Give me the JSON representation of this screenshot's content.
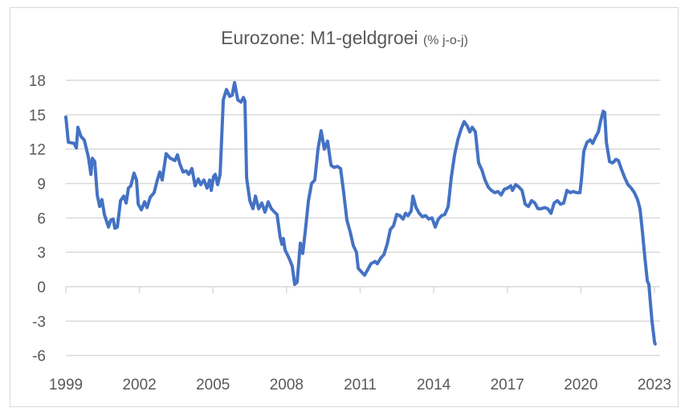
{
  "chart_data": {
    "type": "line",
    "title": "Eurozone: M1-geldgroei",
    "subtitle": "(% j-o-j)",
    "xlabel": "",
    "ylabel": "",
    "xlim": [
      1999,
      2023
    ],
    "ylim": [
      -6,
      18
    ],
    "yticks": [
      18,
      15,
      12,
      9,
      6,
      3,
      0,
      -3,
      -6
    ],
    "ytick_labels": [
      "18",
      "15",
      "12",
      "9",
      "6",
      "3",
      "0",
      "-3",
      "-6"
    ],
    "xticks": [
      1999,
      2002,
      2005,
      2008,
      2011,
      2014,
      2017,
      2020,
      2023
    ],
    "xtick_labels": [
      "1999",
      "2002",
      "2005",
      "2008",
      "2011",
      "2014",
      "2017",
      "2020",
      "2023"
    ],
    "grid": true,
    "legend": "none",
    "color": "#4472c4",
    "series": [
      {
        "name": "M1-geldgroei",
        "points": [
          [
            1999.0,
            14.8
          ],
          [
            1999.1,
            12.6
          ],
          [
            1999.33,
            12.5
          ],
          [
            1999.43,
            12.1
          ],
          [
            1999.49,
            13.9
          ],
          [
            1999.62,
            13.1
          ],
          [
            1999.75,
            12.8
          ],
          [
            1999.92,
            11.3
          ],
          [
            2000.02,
            9.8
          ],
          [
            2000.08,
            11.2
          ],
          [
            2000.18,
            10.9
          ],
          [
            2000.28,
            8.0
          ],
          [
            2000.38,
            7.0
          ],
          [
            2000.47,
            7.6
          ],
          [
            2000.57,
            6.3
          ],
          [
            2000.74,
            5.2
          ],
          [
            2000.83,
            5.8
          ],
          [
            2000.93,
            5.9
          ],
          [
            2001.0,
            5.1
          ],
          [
            2001.1,
            5.2
          ],
          [
            2001.23,
            7.5
          ],
          [
            2001.36,
            7.9
          ],
          [
            2001.46,
            7.3
          ],
          [
            2001.55,
            8.6
          ],
          [
            2001.65,
            8.8
          ],
          [
            2001.78,
            9.9
          ],
          [
            2001.88,
            9.3
          ],
          [
            2001.95,
            7.2
          ],
          [
            2002.08,
            6.7
          ],
          [
            2002.21,
            7.4
          ],
          [
            2002.31,
            6.9
          ],
          [
            2002.44,
            7.8
          ],
          [
            2002.6,
            8.2
          ],
          [
            2002.73,
            9.3
          ],
          [
            2002.83,
            10.0
          ],
          [
            2002.93,
            9.3
          ],
          [
            2003.09,
            11.6
          ],
          [
            2003.26,
            11.2
          ],
          [
            2003.45,
            11.0
          ],
          [
            2003.55,
            11.5
          ],
          [
            2003.65,
            10.7
          ],
          [
            2003.78,
            10.0
          ],
          [
            2003.91,
            10.1
          ],
          [
            2004.01,
            9.8
          ],
          [
            2004.14,
            10.3
          ],
          [
            2004.27,
            8.8
          ],
          [
            2004.4,
            9.4
          ],
          [
            2004.5,
            8.9
          ],
          [
            2004.63,
            9.3
          ],
          [
            2004.76,
            8.6
          ],
          [
            2004.86,
            9.3
          ],
          [
            2004.93,
            8.4
          ],
          [
            2005.02,
            9.6
          ],
          [
            2005.09,
            9.8
          ],
          [
            2005.19,
            8.9
          ],
          [
            2005.29,
            9.8
          ],
          [
            2005.42,
            16.3
          ],
          [
            2005.55,
            17.2
          ],
          [
            2005.68,
            16.6
          ],
          [
            2005.78,
            16.7
          ],
          [
            2005.88,
            17.8
          ],
          [
            2006.01,
            16.3
          ],
          [
            2006.14,
            16.1
          ],
          [
            2006.24,
            16.5
          ],
          [
            2006.3,
            16.2
          ],
          [
            2006.37,
            9.5
          ],
          [
            2006.5,
            7.5
          ],
          [
            2006.63,
            6.8
          ],
          [
            2006.73,
            7.9
          ],
          [
            2006.86,
            6.8
          ],
          [
            2006.99,
            7.3
          ],
          [
            2007.12,
            6.5
          ],
          [
            2007.25,
            7.4
          ],
          [
            2007.38,
            6.8
          ],
          [
            2007.51,
            6.5
          ],
          [
            2007.61,
            6.3
          ],
          [
            2007.74,
            4.3
          ],
          [
            2007.81,
            3.7
          ],
          [
            2007.87,
            4.2
          ],
          [
            2007.94,
            3.2
          ],
          [
            2008.1,
            2.5
          ],
          [
            2008.23,
            1.8
          ],
          [
            2008.33,
            0.2
          ],
          [
            2008.43,
            0.4
          ],
          [
            2008.56,
            3.8
          ],
          [
            2008.66,
            2.9
          ],
          [
            2008.76,
            4.8
          ],
          [
            2008.89,
            7.5
          ],
          [
            2009.02,
            9.0
          ],
          [
            2009.15,
            9.3
          ],
          [
            2009.28,
            12.0
          ],
          [
            2009.41,
            13.6
          ],
          [
            2009.54,
            12.0
          ],
          [
            2009.67,
            12.7
          ],
          [
            2009.81,
            10.6
          ],
          [
            2009.94,
            10.4
          ],
          [
            2010.07,
            10.5
          ],
          [
            2010.2,
            10.3
          ],
          [
            2010.33,
            8.2
          ],
          [
            2010.46,
            5.8
          ],
          [
            2010.59,
            4.8
          ],
          [
            2010.72,
            3.6
          ],
          [
            2010.85,
            3.0
          ],
          [
            2010.92,
            1.6
          ],
          [
            2011.05,
            1.3
          ],
          [
            2011.18,
            1.0
          ],
          [
            2011.31,
            1.5
          ],
          [
            2011.44,
            2.0
          ],
          [
            2011.61,
            2.2
          ],
          [
            2011.7,
            2.0
          ],
          [
            2011.84,
            2.5
          ],
          [
            2011.97,
            2.8
          ],
          [
            2012.1,
            3.7
          ],
          [
            2012.23,
            5.0
          ],
          [
            2012.36,
            5.3
          ],
          [
            2012.49,
            6.3
          ],
          [
            2012.62,
            6.2
          ],
          [
            2012.75,
            5.9
          ],
          [
            2012.85,
            6.4
          ],
          [
            2012.95,
            6.2
          ],
          [
            2013.08,
            6.6
          ],
          [
            2013.15,
            7.9
          ],
          [
            2013.28,
            6.9
          ],
          [
            2013.41,
            6.4
          ],
          [
            2013.54,
            6.1
          ],
          [
            2013.67,
            6.2
          ],
          [
            2013.8,
            5.9
          ],
          [
            2013.93,
            6.0
          ],
          [
            2014.06,
            5.2
          ],
          [
            2014.19,
            5.9
          ],
          [
            2014.32,
            6.2
          ],
          [
            2014.45,
            6.3
          ],
          [
            2014.59,
            7.0
          ],
          [
            2014.72,
            9.6
          ],
          [
            2014.85,
            11.5
          ],
          [
            2014.98,
            12.8
          ],
          [
            2015.11,
            13.7
          ],
          [
            2015.24,
            14.4
          ],
          [
            2015.37,
            14.0
          ],
          [
            2015.47,
            13.5
          ],
          [
            2015.57,
            13.9
          ],
          [
            2015.7,
            13.5
          ],
          [
            2015.83,
            10.8
          ],
          [
            2015.96,
            10.2
          ],
          [
            2016.09,
            9.3
          ],
          [
            2016.22,
            8.7
          ],
          [
            2016.35,
            8.4
          ],
          [
            2016.49,
            8.2
          ],
          [
            2016.62,
            8.3
          ],
          [
            2016.75,
            8.0
          ],
          [
            2016.88,
            8.5
          ],
          [
            2017.01,
            8.6
          ],
          [
            2017.14,
            8.8
          ],
          [
            2017.21,
            8.4
          ],
          [
            2017.34,
            8.9
          ],
          [
            2017.47,
            8.7
          ],
          [
            2017.6,
            8.4
          ],
          [
            2017.73,
            7.2
          ],
          [
            2017.86,
            7.0
          ],
          [
            2017.99,
            7.5
          ],
          [
            2018.12,
            7.3
          ],
          [
            2018.25,
            6.8
          ],
          [
            2018.38,
            6.8
          ],
          [
            2018.52,
            6.9
          ],
          [
            2018.65,
            6.8
          ],
          [
            2018.78,
            6.4
          ],
          [
            2018.91,
            7.3
          ],
          [
            2019.04,
            7.5
          ],
          [
            2019.17,
            7.2
          ],
          [
            2019.3,
            7.3
          ],
          [
            2019.43,
            8.4
          ],
          [
            2019.56,
            8.2
          ],
          [
            2019.69,
            8.3
          ],
          [
            2019.82,
            8.2
          ],
          [
            2019.96,
            8.2
          ],
          [
            2020.02,
            9.3
          ],
          [
            2020.12,
            11.8
          ],
          [
            2020.25,
            12.6
          ],
          [
            2020.38,
            12.8
          ],
          [
            2020.48,
            12.5
          ],
          [
            2020.61,
            13.1
          ],
          [
            2020.71,
            13.5
          ],
          [
            2020.81,
            14.5
          ],
          [
            2020.91,
            15.3
          ],
          [
            2020.97,
            15.2
          ],
          [
            2021.04,
            12.6
          ],
          [
            2021.17,
            10.9
          ],
          [
            2021.3,
            10.8
          ],
          [
            2021.43,
            11.1
          ],
          [
            2021.53,
            11.0
          ],
          [
            2021.66,
            10.2
          ],
          [
            2021.79,
            9.5
          ],
          [
            2021.92,
            8.9
          ],
          [
            2022.05,
            8.6
          ],
          [
            2022.18,
            8.2
          ],
          [
            2022.31,
            7.6
          ],
          [
            2022.41,
            6.8
          ],
          [
            2022.51,
            4.8
          ],
          [
            2022.61,
            2.5
          ],
          [
            2022.71,
            0.5
          ],
          [
            2022.77,
            0.2
          ],
          [
            2022.9,
            -3.0
          ],
          [
            2023.0,
            -4.8
          ],
          [
            2023.03,
            -5.0
          ]
        ]
      }
    ]
  }
}
